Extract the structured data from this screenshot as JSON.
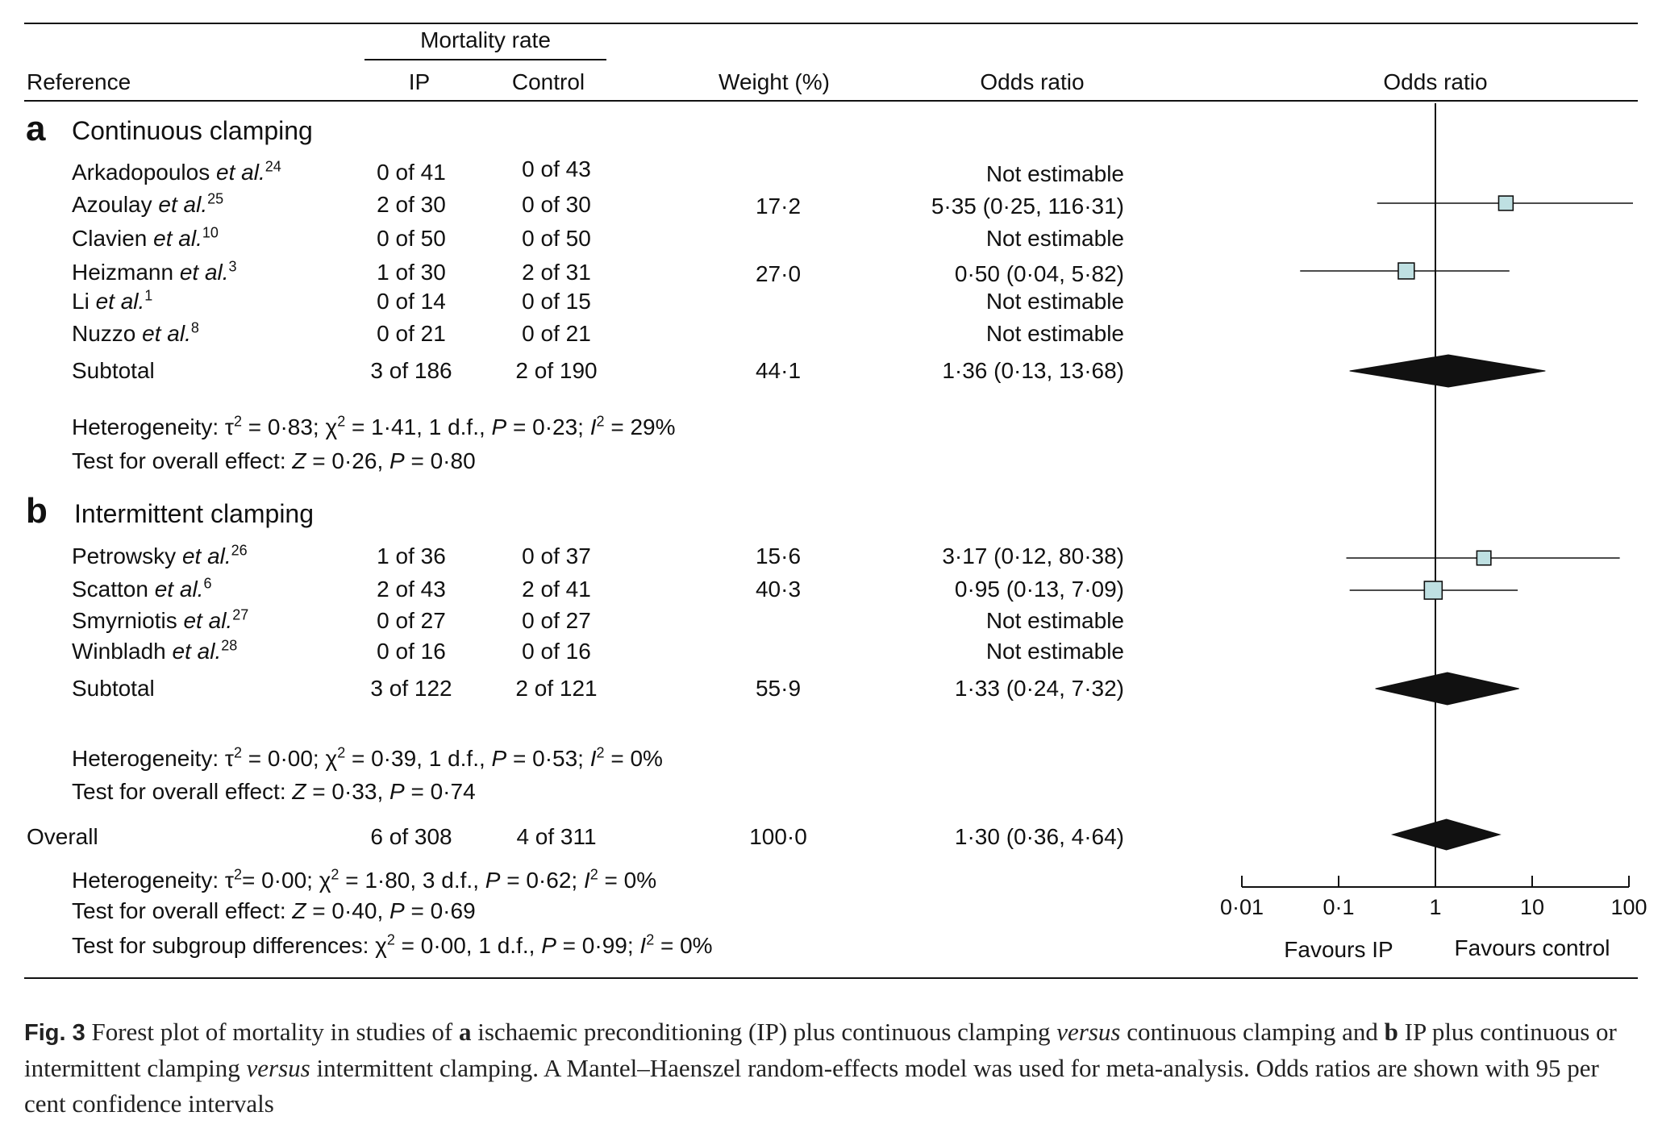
{
  "headers": {
    "mortality_rate": "Mortality rate",
    "reference": "Reference",
    "ip": "IP",
    "control": "Control",
    "weight": "Weight (%)",
    "odds_ratio": "Odds ratio",
    "odds_ratio_plot": "Odds ratio"
  },
  "sections": [
    {
      "letter": "a",
      "title": "Continuous clamping",
      "rows": [
        {
          "author": "Arkadopoulos",
          "etal": "et al.",
          "ref": "24",
          "ip": "0 of 41",
          "control": "0 of 43",
          "weight": "",
          "or_text": "Not estimable"
        },
        {
          "author": "Azoulay",
          "etal": "et al.",
          "ref": "25",
          "ip": "2 of 30",
          "control": "0 of 30",
          "weight": "17·2",
          "or_text": "5·35 (0·25, 116·31)"
        },
        {
          "author": "Clavien",
          "etal": "et al.",
          "ref": "10",
          "ip": "0 of 50",
          "control": "0 of 50",
          "weight": "",
          "or_text": "Not estimable"
        },
        {
          "author": "Heizmann",
          "etal": "et al.",
          "ref": "3",
          "ip": "1 of 30",
          "control": "2 of 31",
          "weight": "27·0",
          "or_text": "0·50 (0·04, 5·82)"
        },
        {
          "author": "Li",
          "etal": "et al.",
          "ref": "1",
          "ip": "0 of 14",
          "control": "0 of 15",
          "weight": "",
          "or_text": "Not estimable"
        },
        {
          "author": "Nuzzo",
          "etal": "et al.",
          "ref": "8",
          "ip": "0 of 21",
          "control": "0 of 21",
          "weight": "",
          "or_text": "Not estimable"
        }
      ],
      "subtotal": {
        "label": "Subtotal",
        "ip": "3 of 186",
        "control": "2 of 190",
        "weight": "44·1",
        "or_text": "1·36 (0·13, 13·68)"
      },
      "heterogeneity": {
        "prefix": "Heterogeneity: τ",
        "tau_exp": "2",
        "tau_val": " = 0·83; χ",
        "chi_exp": "2",
        "chi_val": " = 1·41, 1 d.f., ",
        "p_label": "P",
        "p_val": " = 0·23; ",
        "i_label": "I",
        "i_exp": "2",
        "i_val": " = 29%"
      },
      "overall_effect": {
        "prefix": "Test for overall effect: ",
        "z_label": "Z",
        "z_val": " = 0·26, ",
        "p_label": "P",
        "p_val": " = 0·80"
      }
    },
    {
      "letter": "b",
      "title": "Intermittent clamping",
      "rows": [
        {
          "author": "Petrowsky",
          "etal": "et al.",
          "ref": "26",
          "ip": "1 of 36",
          "control": "0 of 37",
          "weight": "15·6",
          "or_text": "3·17 (0·12, 80·38)"
        },
        {
          "author": "Scatton",
          "etal": "et al.",
          "ref": "6",
          "ip": "2 of 43",
          "control": "2 of 41",
          "weight": "40·3",
          "or_text": "0·95 (0·13, 7·09)"
        },
        {
          "author": "Smyrniotis",
          "etal": "et al.",
          "ref": "27",
          "ip": "0 of 27",
          "control": "0 of 27",
          "weight": "",
          "or_text": "Not estimable"
        },
        {
          "author": "Winbladh",
          "etal": "et al.",
          "ref": "28",
          "ip": "0 of 16",
          "control": "0 of 16",
          "weight": "",
          "or_text": "Not estimable"
        }
      ],
      "subtotal": {
        "label": "Subtotal",
        "ip": "3 of 122",
        "control": "2 of 121",
        "weight": "55·9",
        "or_text": "1·33 (0·24, 7·32)"
      },
      "heterogeneity": {
        "prefix": "Heterogeneity: τ",
        "tau_exp": "2",
        "tau_val": " = 0·00; χ",
        "chi_exp": "2",
        "chi_val": " = 0·39, 1 d.f., ",
        "p_label": "P",
        "p_val": " = 0·53; ",
        "i_label": "I",
        "i_exp": "2",
        "i_val": " = 0%"
      },
      "overall_effect": {
        "prefix": "Test for overall effect: ",
        "z_label": "Z",
        "z_val": " = 0·33, ",
        "p_label": "P",
        "p_val": " = 0·74"
      }
    }
  ],
  "overall": {
    "label": "Overall",
    "ip": "6 of 308",
    "control": "4 of 311",
    "weight": "100·0",
    "or_text": "1·30 (0·36, 4·64)",
    "heterogeneity": {
      "prefix": "Heterogeneity: τ",
      "tau_exp": "2",
      "tau_val": "= 0·00; χ",
      "chi_exp": "2",
      "chi_val": " = 1·80, 3 d.f., ",
      "p_label": "P",
      "p_val": " = 0·62; ",
      "i_label": "I",
      "i_exp": "2",
      "i_val": " = 0%"
    },
    "overall_effect": {
      "prefix": "Test for overall effect: ",
      "z_label": "Z",
      "z_val": " = 0·40, ",
      "p_label": "P",
      "p_val": " = 0·69"
    },
    "subgroup": {
      "prefix": "Test for subgroup differences: χ",
      "chi_exp": "2",
      "chi_val": " = 0·00, 1 d.f., ",
      "p_label": "P",
      "p_val": " = 0·99; ",
      "i_label": "I",
      "i_exp": "2",
      "i_val": " = 0%"
    }
  },
  "axis": {
    "favours_left": "Favours IP",
    "favours_right": "Favours control"
  },
  "caption": {
    "label": "Fig. 3",
    "t1": " Forest plot of mortality in studies of ",
    "a": "a",
    "t2": " ischaemic preconditioning (IP) plus continuous clamping ",
    "versus1": "versus",
    "t3": " continuous clamping and ",
    "b": "b",
    "t4": " IP plus continuous or intermittent clamping ",
    "versus2": "versus",
    "t5": " intermittent clamping. A Mantel–Haenszel random-effects model was used for meta-analysis. Odds ratios are shown with 95 per cent confidence intervals"
  },
  "chart_data": {
    "type": "forest",
    "x_scale": "log",
    "xlim": [
      0.01,
      100
    ],
    "ticks": [
      0.01,
      0.1,
      1,
      10,
      100
    ],
    "tick_labels": [
      "0·01",
      "0·1",
      "1",
      "10",
      "100"
    ],
    "reference_line": 1,
    "colors": {
      "study_box": "#bfe0e2",
      "summary": "#111111",
      "line": "#111111"
    },
    "studies": [
      {
        "label": "Azoulay et al.",
        "or": 5.35,
        "lo": 0.25,
        "hi": 116.31,
        "weight": 17.2,
        "clipped_high": true
      },
      {
        "label": "Heizmann et al.",
        "or": 0.5,
        "lo": 0.04,
        "hi": 5.82,
        "weight": 27.0
      },
      {
        "label": "Petrowsky et al.",
        "or": 3.17,
        "lo": 0.12,
        "hi": 80.38,
        "weight": 15.6
      },
      {
        "label": "Scatton et al.",
        "or": 0.95,
        "lo": 0.13,
        "hi": 7.09,
        "weight": 40.3
      }
    ],
    "summaries": [
      {
        "label": "Subtotal (a)",
        "or": 1.36,
        "lo": 0.13,
        "hi": 13.68
      },
      {
        "label": "Subtotal (b)",
        "or": 1.33,
        "lo": 0.24,
        "hi": 7.32
      },
      {
        "label": "Overall",
        "or": 1.3,
        "lo": 0.36,
        "hi": 4.64
      }
    ]
  }
}
